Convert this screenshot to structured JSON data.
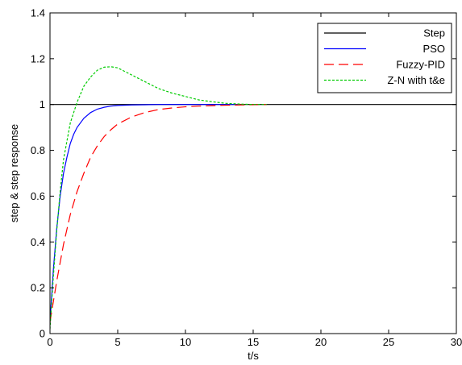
{
  "chart_data": {
    "type": "line",
    "title": "",
    "xlabel": "t/s",
    "ylabel": "step & step response",
    "xlim": [
      0,
      30
    ],
    "ylim": [
      0,
      1.4
    ],
    "xticks": [
      0,
      5,
      10,
      15,
      20,
      25,
      30
    ],
    "xtick_labels": [
      "0",
      "5",
      "10",
      "15",
      "20",
      "25",
      "30"
    ],
    "yticks": [
      0,
      0.2,
      0.4,
      0.6,
      0.8,
      1,
      1.2,
      1.4
    ],
    "ytick_labels": [
      "0",
      "0.2",
      "0.4",
      "0.6",
      "0.8",
      "1",
      "1.2",
      "1.4"
    ],
    "grid": false,
    "legend_position": "top-right",
    "series": [
      {
        "name": "Step",
        "color": "#000000",
        "dash": "solid",
        "x": [
          0,
          30
        ],
        "y": [
          1,
          1
        ]
      },
      {
        "name": "PSO",
        "color": "#0000ff",
        "dash": "solid",
        "x": [
          0,
          0.25,
          0.5,
          0.75,
          1,
          1.25,
          1.5,
          1.75,
          2,
          2.5,
          3,
          3.5,
          4,
          4.5,
          5,
          6,
          7,
          8,
          10,
          12,
          14
        ],
        "y": [
          0.05,
          0.28,
          0.46,
          0.6,
          0.7,
          0.77,
          0.83,
          0.87,
          0.9,
          0.94,
          0.965,
          0.98,
          0.988,
          0.993,
          0.996,
          0.998,
          0.999,
          1,
          1,
          1,
          1
        ]
      },
      {
        "name": "Fuzzy-PID",
        "color": "#ff0000",
        "dash": "dashed",
        "x": [
          0,
          0.5,
          1,
          1.5,
          2,
          2.5,
          3,
          3.5,
          4,
          4.5,
          5,
          6,
          7,
          8,
          9,
          10,
          11,
          12,
          13,
          14,
          16
        ],
        "y": [
          0.05,
          0.23,
          0.39,
          0.52,
          0.62,
          0.7,
          0.77,
          0.82,
          0.86,
          0.89,
          0.915,
          0.945,
          0.965,
          0.978,
          0.985,
          0.99,
          0.993,
          0.995,
          0.997,
          0.998,
          1
        ]
      },
      {
        "name": "Z-N with t&e",
        "color": "#00cc00",
        "dash": "dotted",
        "x": [
          0,
          0.25,
          0.5,
          0.75,
          1,
          1.5,
          2,
          2.5,
          3,
          3.5,
          4,
          4.5,
          5,
          5.5,
          6,
          7,
          8,
          9,
          10,
          11,
          12,
          13,
          14,
          15,
          16
        ],
        "y": [
          0.02,
          0.25,
          0.45,
          0.62,
          0.76,
          0.92,
          1.01,
          1.08,
          1.12,
          1.15,
          1.163,
          1.165,
          1.16,
          1.145,
          1.13,
          1.1,
          1.07,
          1.05,
          1.035,
          1.02,
          1.012,
          1.005,
          1.002,
          1,
          1
        ]
      }
    ]
  }
}
